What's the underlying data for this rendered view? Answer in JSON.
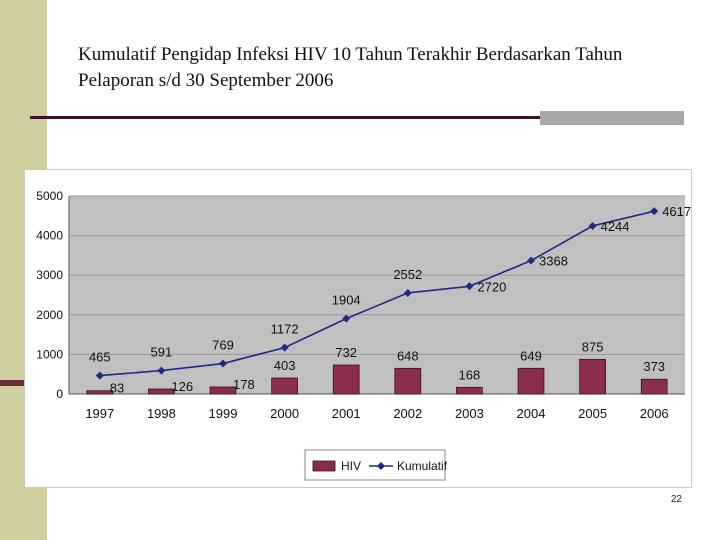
{
  "slide": {
    "title": "Kumulatif Pengidap Infeksi HIV 10 Tahun Terakhir Berdasarkan Tahun Pelaporan s/d 30 September 2006",
    "page_number": "22"
  },
  "colors": {
    "side_band": "#cfcf9e",
    "bar": "#8b2d4e",
    "line": "#1f2a80",
    "plot_bg": "#c0c0c0"
  },
  "chart_data": {
    "type": "bar",
    "categories": [
      "1997",
      "1998",
      "1999",
      "2000",
      "2001",
      "2002",
      "2003",
      "2004",
      "2005",
      "2006"
    ],
    "series": [
      {
        "name": "HIV",
        "type": "bar",
        "values": [
          83,
          126,
          178,
          403,
          732,
          648,
          168,
          649,
          875,
          373
        ]
      },
      {
        "name": "Kumulatif",
        "type": "line",
        "values": [
          465,
          591,
          769,
          1172,
          1904,
          2552,
          2720,
          3368,
          4244,
          4617
        ]
      }
    ],
    "y_ticks": [
      "0",
      "1000",
      "2000",
      "3000",
      "4000",
      "5000"
    ],
    "ylim": [
      0,
      5000
    ],
    "grid": true,
    "legend_position": "bottom"
  }
}
